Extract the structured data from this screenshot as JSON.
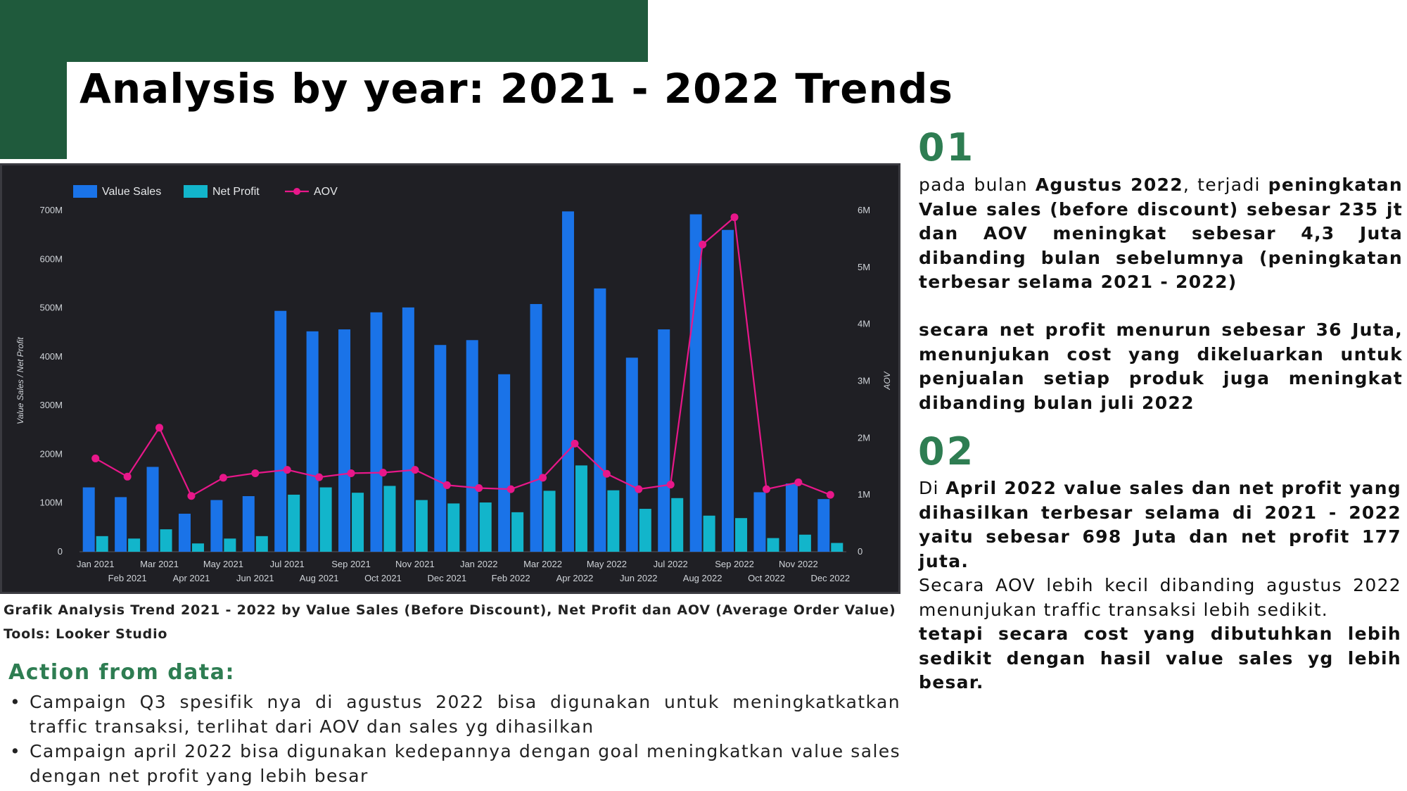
{
  "title": "Analysis by year: 2021 - 2022 Trends",
  "colors": {
    "green": "#1f5a3c",
    "accent_green": "#2e7d52",
    "value_sales": "#1a73e8",
    "net_profit": "#12b5cb",
    "aov": "#e8178a",
    "chart_bg": "#1f1f24"
  },
  "chart_data": {
    "type": "bar",
    "title": "",
    "categories": [
      "Jan 2021",
      "Feb 2021",
      "Mar 2021",
      "Apr 2021",
      "May 2021",
      "Jun 2021",
      "Jul 2021",
      "Aug 2021",
      "Sep 2021",
      "Oct 2021",
      "Nov 2021",
      "Dec 2021",
      "Jan 2022",
      "Feb 2022",
      "Mar 2022",
      "Apr 2022",
      "May 2022",
      "Jun 2022",
      "Jul 2022",
      "Aug 2022",
      "Sep 2022",
      "Oct 2022",
      "Nov 2022",
      "Dec 2022"
    ],
    "series": [
      {
        "name": "Value Sales",
        "kind": "bar",
        "axis": "left",
        "values": [
          132,
          112,
          174,
          78,
          106,
          114,
          494,
          452,
          456,
          491,
          501,
          424,
          434,
          364,
          508,
          698,
          540,
          398,
          456,
          692,
          660,
          122,
          140,
          108
        ]
      },
      {
        "name": "Net Profit",
        "kind": "bar",
        "axis": "left",
        "values": [
          32,
          27,
          46,
          17,
          27,
          32,
          117,
          132,
          121,
          135,
          106,
          99,
          101,
          81,
          125,
          177,
          126,
          88,
          110,
          74,
          69,
          28,
          35,
          18
        ]
      },
      {
        "name": "AOV",
        "kind": "line",
        "axis": "right",
        "values": [
          1.64,
          1.32,
          2.18,
          0.98,
          1.3,
          1.38,
          1.44,
          1.31,
          1.38,
          1.39,
          1.44,
          1.17,
          1.12,
          1.1,
          1.3,
          1.9,
          1.37,
          1.1,
          1.18,
          5.4,
          5.88,
          1.1,
          1.22,
          1.0
        ]
      }
    ],
    "left_axis": {
      "label": "Value Sales / Net Profit",
      "min": 0,
      "max": 700,
      "ticks": [
        0,
        100,
        200,
        300,
        400,
        500,
        600,
        700
      ],
      "tick_labels": [
        "0",
        "100M",
        "200M",
        "300M",
        "400M",
        "500M",
        "600M",
        "700M"
      ]
    },
    "right_axis": {
      "label": "AOV",
      "min": 0,
      "max": 6,
      "ticks": [
        0,
        1,
        2,
        3,
        4,
        5,
        6
      ],
      "tick_labels": [
        "0",
        "1M",
        "2M",
        "3M",
        "4M",
        "5M",
        "6M"
      ]
    },
    "legend": {
      "placement": "top-left",
      "labels": [
        "Value Sales",
        "Net Profit",
        "AOV"
      ]
    },
    "grid": false
  },
  "caption": "Grafik Analysis Trend 2021 - 2022 by Value Sales (Before Discount), Net Profit dan AOV (Average Order Value)",
  "tools": "Tools: Looker Studio",
  "action": {
    "heading": "Action from data:",
    "items": [
      "Campaign Q3 spesifik nya di agustus 2022 bisa digunakan untuk meningkatkatkan traffic transaksi, terlihat dari AOV dan sales yg dihasilkan",
      "Campaign april 2022 bisa digunakan kedepannya dengan goal meningkatkan value sales dengan net profit yang lebih besar"
    ]
  },
  "insights": {
    "n1": "01",
    "p1": {
      "a": "pada bulan ",
      "b": "Agustus 2022",
      "c": ", terjadi ",
      "d": "peningkatan Value sales (before discount) sebesar 235 jt dan AOV meningkat sebesar 4,3 Juta dibanding bulan sebelumnya (peningkatan terbesar selama 2021 - 2022)"
    },
    "p2": "secara net profit menurun sebesar 36 Juta, menunjukan cost yang dikeluarkan untuk penjualan setiap produk juga meningkat dibanding bulan juli 2022",
    "n2": "02",
    "p3": {
      "a": "Di ",
      "b": "April 2022 value sales dan net profit yang dihasilkan terbesar selama di 2021 - 2022 yaitu sebesar 698 Juta dan net profit 177 juta."
    },
    "p4": {
      "a": "Secara AOV lebih kecil dibanding agustus 2022 menunjukan traffic transaksi lebih sedikit.",
      "b": "tetapi secara cost yang dibutuhkan lebih sedikit dengan hasil value sales yg lebih besar."
    }
  }
}
